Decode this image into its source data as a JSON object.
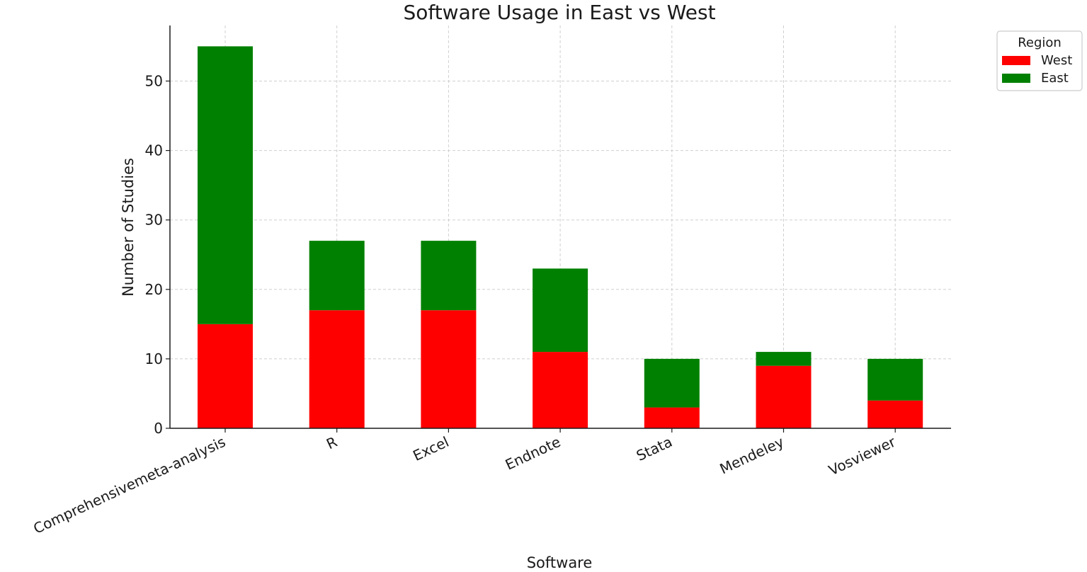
{
  "chart_data": {
    "type": "bar",
    "stacked": true,
    "title": "Software Usage in East vs West",
    "xlabel": "Software",
    "ylabel": "Number of Studies",
    "categories": [
      "Comprehensivemeta-analysis",
      "R",
      "Excel",
      "Endnote",
      "Stata",
      "Mendeley",
      "Vosviewer"
    ],
    "series": [
      {
        "name": "West",
        "color": "#ff0000",
        "values": [
          15,
          17,
          17,
          11,
          3,
          9,
          4
        ]
      },
      {
        "name": "East",
        "color": "#008000",
        "values": [
          40,
          10,
          10,
          12,
          7,
          2,
          6
        ]
      }
    ],
    "ylim": [
      0,
      58
    ],
    "yticks": [
      0,
      10,
      20,
      30,
      40,
      50
    ],
    "grid": true,
    "legend": {
      "title": "Region",
      "position": "top-right, outside"
    }
  }
}
